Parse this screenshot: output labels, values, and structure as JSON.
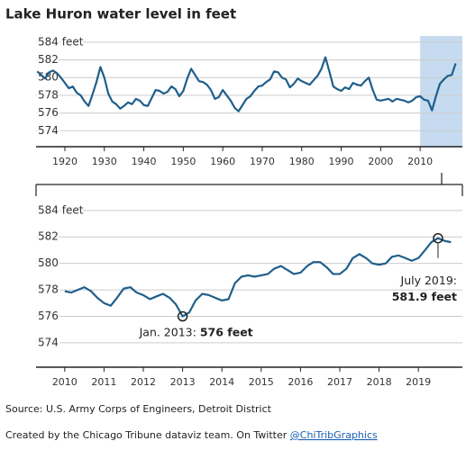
{
  "title": "Lake Huron water level in feet",
  "chart_data": [
    {
      "type": "line",
      "x": [
        1913,
        1914,
        1915,
        1916,
        1917,
        1918,
        1919,
        1920,
        1921,
        1922,
        1923,
        1924,
        1925,
        1926,
        1927,
        1928,
        1929,
        1930,
        1931,
        1932,
        1933,
        1934,
        1935,
        1936,
        1937,
        1938,
        1939,
        1940,
        1941,
        1942,
        1943,
        1944,
        1945,
        1946,
        1947,
        1948,
        1949,
        1950,
        1951,
        1952,
        1953,
        1954,
        1955,
        1956,
        1957,
        1958,
        1959,
        1960,
        1961,
        1962,
        1963,
        1964,
        1965,
        1966,
        1967,
        1968,
        1969,
        1970,
        1971,
        1972,
        1973,
        1974,
        1975,
        1976,
        1977,
        1978,
        1979,
        1980,
        1981,
        1982,
        1983,
        1984,
        1985,
        1986,
        1987,
        1988,
        1989,
        1990,
        1991,
        1992,
        1993,
        1994,
        1995,
        1996,
        1997,
        1998,
        1999,
        2000,
        2001,
        2002,
        2003,
        2004,
        2005,
        2006,
        2007,
        2008,
        2009,
        2010,
        2011,
        2012,
        2013,
        2014,
        2015,
        2016,
        2017,
        2018,
        2019
      ],
      "series": [
        {
          "color": "#1f5f8b",
          "values": [
            580.7,
            580.3,
            579.9,
            580.6,
            580.8,
            580.5,
            580.0,
            579.4,
            578.8,
            579.0,
            578.3,
            578.0,
            577.3,
            576.8,
            578.1,
            579.5,
            581.2,
            580.0,
            578.2,
            577.3,
            577.0,
            576.5,
            576.8,
            577.2,
            577.0,
            577.6,
            577.4,
            576.9,
            576.8,
            577.7,
            578.6,
            578.5,
            578.2,
            578.4,
            579.0,
            578.7,
            577.9,
            578.5,
            579.9,
            581.0,
            580.3,
            579.6,
            579.5,
            579.2,
            578.6,
            577.6,
            577.8,
            578.6,
            578.0,
            577.4,
            576.6,
            576.2,
            576.9,
            577.6,
            577.9,
            578.5,
            579.0,
            579.1,
            579.5,
            579.8,
            580.7,
            580.6,
            580.0,
            579.8,
            578.9,
            579.3,
            579.9,
            579.6,
            579.4,
            579.2,
            579.7,
            580.2,
            581.0,
            582.3,
            580.7,
            579.0,
            578.7,
            578.5,
            578.9,
            578.7,
            579.4,
            579.2,
            579.1,
            579.6,
            580.0,
            578.6,
            577.5,
            577.4,
            577.5,
            577.6,
            577.3,
            577.6,
            577.5,
            577.4,
            577.2,
            577.4,
            577.8,
            577.9,
            577.5,
            577.4,
            576.3,
            577.9,
            579.3,
            579.8,
            580.2,
            580.3,
            581.6
          ]
        }
      ],
      "xlim": [
        1912.7,
        2020.7
      ],
      "ylim": [
        572.2,
        584.7
      ],
      "xticks": [
        1920,
        1930,
        1940,
        1950,
        1960,
        1970,
        1980,
        1990,
        2000,
        2010
      ],
      "yticks": [
        {
          "value": 584,
          "label": "584 feet"
        },
        582,
        580,
        578,
        576,
        574
      ],
      "highlight": [
        2010,
        2020.7
      ],
      "highlight_color": "#c6dbef",
      "grid": true
    },
    {
      "type": "line",
      "x": [
        2010.0,
        2010.17,
        2010.33,
        2010.5,
        2010.67,
        2010.83,
        2011.0,
        2011.17,
        2011.33,
        2011.5,
        2011.67,
        2011.83,
        2012.0,
        2012.17,
        2012.33,
        2012.5,
        2012.67,
        2012.83,
        2013.0,
        2013.17,
        2013.33,
        2013.5,
        2013.67,
        2013.83,
        2014.0,
        2014.17,
        2014.33,
        2014.5,
        2014.67,
        2014.83,
        2015.0,
        2015.17,
        2015.33,
        2015.5,
        2015.67,
        2015.83,
        2016.0,
        2016.17,
        2016.33,
        2016.5,
        2016.67,
        2016.83,
        2017.0,
        2017.17,
        2017.33,
        2017.5,
        2017.67,
        2017.83,
        2018.0,
        2018.17,
        2018.33,
        2018.5,
        2018.67,
        2018.83,
        2019.0,
        2019.17,
        2019.33,
        2019.5,
        2019.67,
        2019.83
      ],
      "series": [
        {
          "color": "#1f5f8b",
          "values": [
            577.9,
            577.8,
            578.0,
            578.2,
            577.9,
            577.4,
            577.0,
            576.8,
            577.4,
            578.1,
            578.2,
            577.8,
            577.6,
            577.3,
            577.5,
            577.7,
            577.4,
            576.9,
            576.0,
            576.3,
            577.2,
            577.7,
            577.6,
            577.4,
            577.2,
            577.3,
            578.5,
            579.0,
            579.1,
            579.0,
            579.1,
            579.2,
            579.6,
            579.8,
            579.5,
            579.2,
            579.3,
            579.8,
            580.1,
            580.1,
            579.7,
            579.2,
            579.2,
            579.6,
            580.4,
            580.7,
            580.4,
            580.0,
            579.9,
            580.0,
            580.5,
            580.6,
            580.4,
            580.2,
            580.4,
            581.0,
            581.6,
            581.9,
            581.7,
            581.6
          ]
        }
      ],
      "xlim": [
        2009.27,
        2020.12
      ],
      "ylim": [
        572.16,
        584.6
      ],
      "xticks": [
        2010,
        2011,
        2012,
        2013,
        2014,
        2015,
        2016,
        2017,
        2018,
        2019
      ],
      "yticks": [
        {
          "value": 584,
          "label": "584 feet"
        },
        582,
        580,
        578,
        576,
        574
      ],
      "grid": true,
      "annotations": [
        {
          "text": "Jan. 2013:",
          "value_label": "576 feet",
          "x": 2013.0,
          "y": 576
        },
        {
          "text": "July 2019:",
          "value_label": "581.9 feet",
          "x": 2019.5,
          "y": 581.9
        }
      ]
    }
  ],
  "footer": {
    "source": "Source: U.S. Army Corps of Engineers, Detroit District",
    "credit": "Created by the Chicago Tribune dataviz team. On Twitter",
    "handle": "@ChiTribGraphics"
  }
}
